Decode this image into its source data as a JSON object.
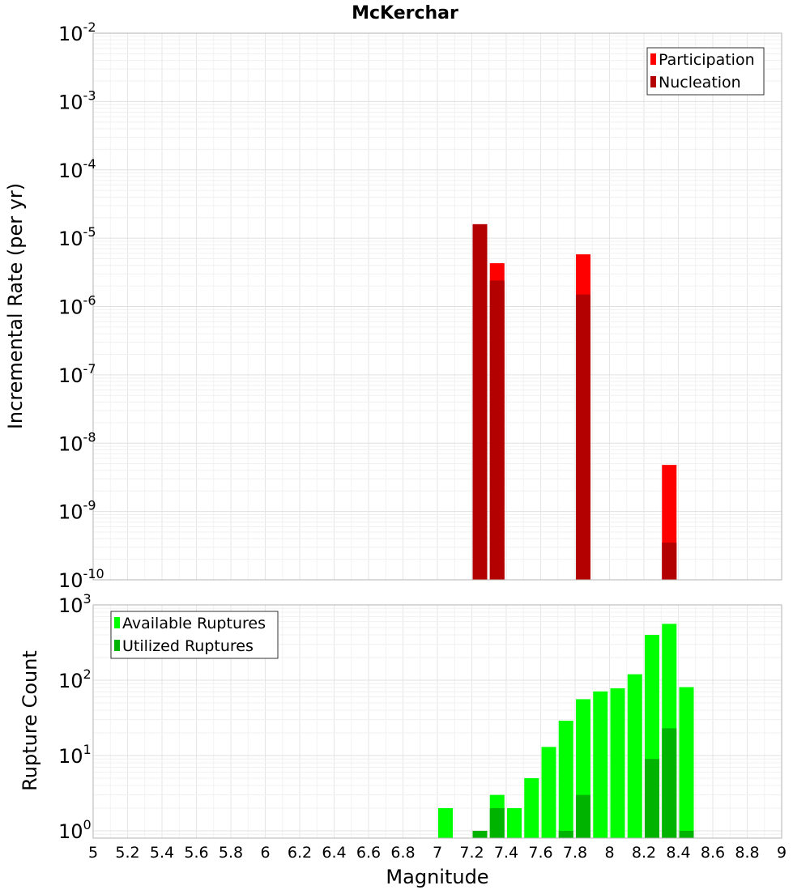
{
  "chart_data": [
    {
      "type": "bar",
      "title": "McKerchar",
      "xlabel": "",
      "ylabel": "Incremental Rate (per yr)",
      "y_scale": "log",
      "ylim": [
        1e-10,
        0.01
      ],
      "y_tick_exponents": [
        -2,
        -3,
        -4,
        -5,
        -6,
        -7,
        -8,
        -9,
        -10
      ],
      "xlim": [
        5,
        9
      ],
      "grid": true,
      "legend_position": "top-right",
      "series": [
        {
          "name": "Participation",
          "color": "#ff0000",
          "points": [
            {
              "x": 7.25,
              "y": 1.6e-05
            },
            {
              "x": 7.35,
              "y": 4.3e-06
            },
            {
              "x": 7.85,
              "y": 5.8e-06
            },
            {
              "x": 8.35,
              "y": 4.8e-09
            }
          ]
        },
        {
          "name": "Nucleation",
          "color": "#b30000",
          "points": [
            {
              "x": 7.25,
              "y": 1.6e-05
            },
            {
              "x": 7.35,
              "y": 2.4e-06
            },
            {
              "x": 7.85,
              "y": 1.5e-06
            },
            {
              "x": 8.35,
              "y": 3.5e-10
            }
          ]
        }
      ]
    },
    {
      "type": "bar",
      "title": "",
      "xlabel": "Magnitude",
      "ylabel": "Rupture Count",
      "y_scale": "log",
      "ylim": [
        0.8,
        1000
      ],
      "y_tick_exponents": [
        3,
        2,
        1,
        0
      ],
      "xlim": [
        5,
        9
      ],
      "x_ticks": [
        "5",
        "5.2",
        "5.4",
        "5.6",
        "5.8",
        "6",
        "6.2",
        "6.4",
        "6.6",
        "6.8",
        "7",
        "7.2",
        "7.4",
        "7.6",
        "7.8",
        "8",
        "8.2",
        "8.4",
        "8.6",
        "8.8",
        "9"
      ],
      "grid": true,
      "legend_position": "top-left",
      "series": [
        {
          "name": "Available Ruptures",
          "color": "#00ff00",
          "points": [
            {
              "x": 7.05,
              "y": 2
            },
            {
              "x": 7.25,
              "y": 1
            },
            {
              "x": 7.35,
              "y": 3
            },
            {
              "x": 7.45,
              "y": 2
            },
            {
              "x": 7.55,
              "y": 5
            },
            {
              "x": 7.65,
              "y": 13
            },
            {
              "x": 7.75,
              "y": 29
            },
            {
              "x": 7.85,
              "y": 56
            },
            {
              "x": 7.95,
              "y": 71
            },
            {
              "x": 8.05,
              "y": 78
            },
            {
              "x": 8.15,
              "y": 120
            },
            {
              "x": 8.25,
              "y": 400
            },
            {
              "x": 8.35,
              "y": 560
            },
            {
              "x": 8.45,
              "y": 81
            }
          ]
        },
        {
          "name": "Utilized Ruptures",
          "color": "#00b300",
          "points": [
            {
              "x": 7.25,
              "y": 1
            },
            {
              "x": 7.35,
              "y": 2
            },
            {
              "x": 7.75,
              "y": 1
            },
            {
              "x": 7.85,
              "y": 3
            },
            {
              "x": 8.25,
              "y": 9
            },
            {
              "x": 8.35,
              "y": 23
            },
            {
              "x": 8.45,
              "y": 1
            }
          ]
        }
      ]
    }
  ]
}
